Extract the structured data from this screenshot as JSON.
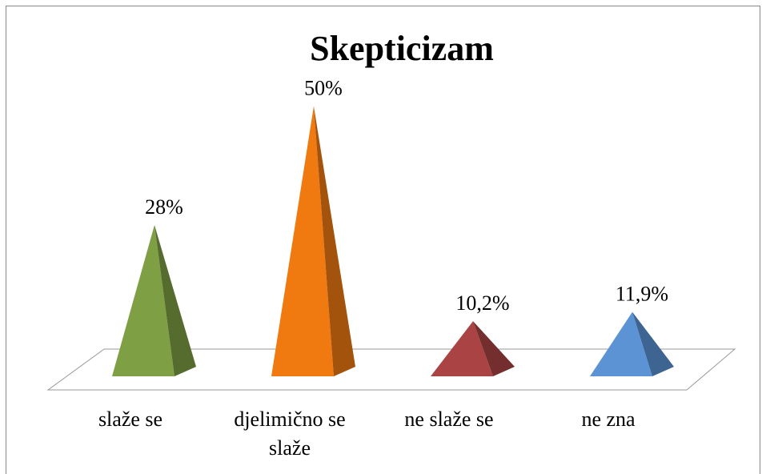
{
  "chart_data": {
    "type": "pyramid",
    "title": "Skepticizam",
    "categories": [
      "slaže se",
      "djelimično se slaže",
      "ne slaže se",
      "ne zna"
    ],
    "values": [
      28,
      50,
      10.2,
      11.9
    ],
    "value_labels": [
      "28%",
      "50%",
      "10,2%",
      "11,9%"
    ],
    "colors": [
      "#7f9f45",
      "#f07a10",
      "#aa4444",
      "#5b93d5"
    ]
  }
}
